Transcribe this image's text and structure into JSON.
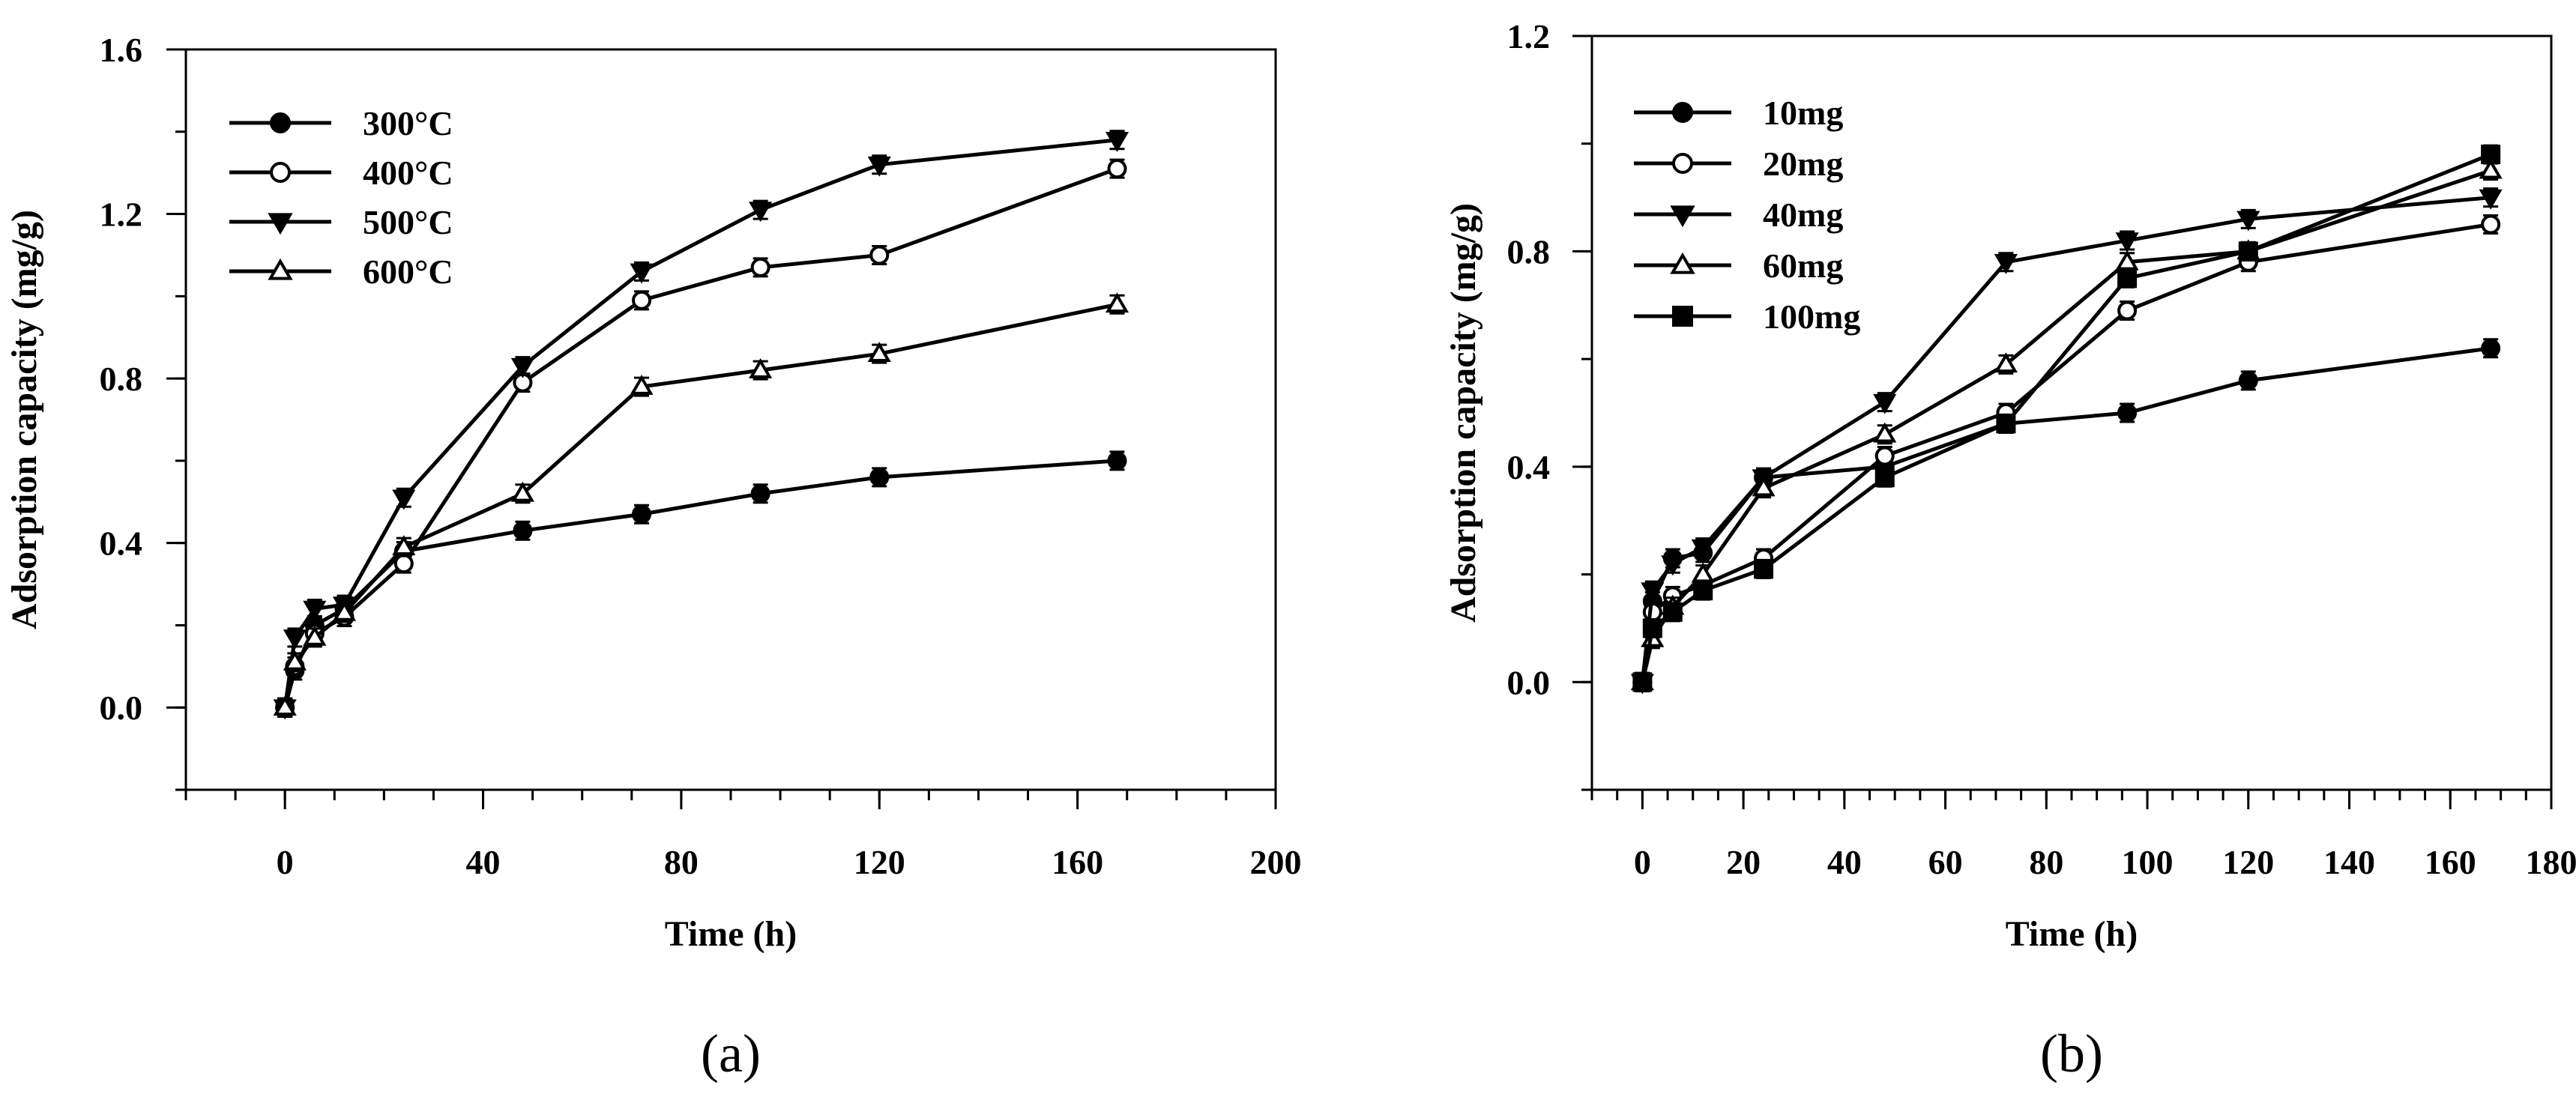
{
  "colors": {
    "ink": "#000000",
    "background": "#ffffff"
  },
  "chart_data": [
    {
      "id": "a",
      "type": "line",
      "caption": "(a)",
      "xlabel": "Time (h)",
      "ylabel": "Adsorption capacity (mg/g)",
      "xlim": [
        -20,
        200
      ],
      "ylim": [
        -0.2,
        1.6
      ],
      "xticks": [
        0,
        40,
        80,
        120,
        160,
        200
      ],
      "xtick_labels": [
        "0",
        "40",
        "80",
        "120",
        "160",
        "200"
      ],
      "yticks": [
        0.0,
        0.4,
        0.8,
        1.2,
        1.6
      ],
      "ytick_labels": [
        "0.0",
        "0.4",
        "0.8",
        "1.2",
        "1.6"
      ],
      "legend_position": "top-left",
      "x": [
        0,
        2,
        6,
        12,
        24,
        48,
        72,
        96,
        120,
        168
      ],
      "series": [
        {
          "name": "300°C",
          "marker": "circle-filled",
          "values": [
            0.0,
            0.09,
            0.2,
            0.24,
            0.38,
            0.43,
            0.47,
            0.52,
            0.56,
            0.6
          ]
        },
        {
          "name": "400°C",
          "marker": "circle-open",
          "values": [
            0.0,
            0.1,
            0.18,
            0.22,
            0.35,
            0.79,
            0.99,
            1.07,
            1.1,
            1.31
          ]
        },
        {
          "name": "500°C",
          "marker": "triangle-down-filled",
          "values": [
            0.0,
            0.17,
            0.24,
            0.25,
            0.51,
            0.83,
            1.06,
            1.21,
            1.32,
            1.38
          ]
        },
        {
          "name": "600°C",
          "marker": "triangle-up-open",
          "values": [
            0.0,
            0.11,
            0.17,
            0.23,
            0.39,
            0.52,
            0.78,
            0.82,
            0.86,
            0.98
          ]
        }
      ]
    },
    {
      "id": "b",
      "type": "line",
      "caption": "(b)",
      "xlabel": "Time (h)",
      "ylabel": "Adsorption capacity (mg/g)",
      "xlim": [
        -10,
        180
      ],
      "ylim": [
        -0.2,
        1.2
      ],
      "xticks": [
        0,
        20,
        40,
        60,
        80,
        100,
        120,
        140,
        160,
        180
      ],
      "xtick_labels": [
        "0",
        "20",
        "40",
        "60",
        "80",
        "100",
        "120",
        "140",
        "160",
        "180"
      ],
      "yticks": [
        0.0,
        0.4,
        0.8,
        1.2
      ],
      "ytick_labels": [
        "0.0",
        "0.4",
        "0.8",
        "1.2"
      ],
      "legend_position": "top-left",
      "x": [
        0,
        2,
        6,
        12,
        24,
        48,
        72,
        96,
        120,
        168
      ],
      "series": [
        {
          "name": "10mg",
          "marker": "circle-filled",
          "values": [
            0.0,
            0.15,
            0.23,
            0.24,
            0.38,
            0.4,
            0.48,
            0.5,
            0.56,
            0.62
          ]
        },
        {
          "name": "20mg",
          "marker": "circle-open",
          "values": [
            0.0,
            0.13,
            0.16,
            0.18,
            0.23,
            0.42,
            0.5,
            0.69,
            0.78,
            0.85
          ]
        },
        {
          "name": "40mg",
          "marker": "triangle-down-filled",
          "values": [
            0.0,
            0.17,
            0.22,
            0.25,
            0.38,
            0.52,
            0.78,
            0.82,
            0.86,
            0.9
          ]
        },
        {
          "name": "60mg",
          "marker": "triangle-up-open",
          "values": [
            0.0,
            0.08,
            0.14,
            0.2,
            0.36,
            0.46,
            0.59,
            0.78,
            0.8,
            0.95
          ]
        },
        {
          "name": "100mg",
          "marker": "square-filled",
          "values": [
            0.0,
            0.1,
            0.13,
            0.17,
            0.21,
            0.38,
            0.48,
            0.75,
            0.8,
            0.98
          ]
        }
      ]
    }
  ]
}
